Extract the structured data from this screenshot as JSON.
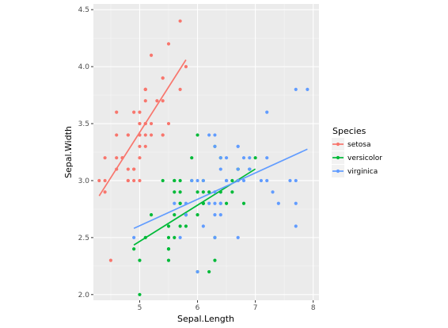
{
  "chart_data": {
    "type": "scatter",
    "xlabel": "Sepal.Length",
    "ylabel": "Sepal.Width",
    "xlim": [
      4.2,
      8.1
    ],
    "ylim": [
      1.95,
      4.55
    ],
    "xticks": [
      5,
      6,
      7,
      8
    ],
    "yticks": [
      2.0,
      2.5,
      3.0,
      3.5,
      4.0,
      4.5
    ],
    "ytick_labels": [
      "2.0",
      "2.5",
      "3.0",
      "3.5",
      "4.0",
      "4.5"
    ],
    "grid": true,
    "legend": {
      "title": "Species",
      "position": "right"
    },
    "series": [
      {
        "name": "setosa",
        "color": "#F8766D",
        "points": [
          [
            5.1,
            3.5
          ],
          [
            4.9,
            3.0
          ],
          [
            4.7,
            3.2
          ],
          [
            4.6,
            3.1
          ],
          [
            5.0,
            3.6
          ],
          [
            5.4,
            3.9
          ],
          [
            4.6,
            3.4
          ],
          [
            5.0,
            3.4
          ],
          [
            4.4,
            2.9
          ],
          [
            4.9,
            3.1
          ],
          [
            5.4,
            3.7
          ],
          [
            4.8,
            3.4
          ],
          [
            4.8,
            3.0
          ],
          [
            4.3,
            3.0
          ],
          [
            5.8,
            4.0
          ],
          [
            5.7,
            4.4
          ],
          [
            5.4,
            3.9
          ],
          [
            5.1,
            3.5
          ],
          [
            5.7,
            3.8
          ],
          [
            5.1,
            3.8
          ],
          [
            5.4,
            3.4
          ],
          [
            5.1,
            3.7
          ],
          [
            4.6,
            3.6
          ],
          [
            5.1,
            3.3
          ],
          [
            4.8,
            3.4
          ],
          [
            5.0,
            3.0
          ],
          [
            5.0,
            3.4
          ],
          [
            5.2,
            3.5
          ],
          [
            5.2,
            3.4
          ],
          [
            4.7,
            3.2
          ],
          [
            4.8,
            3.1
          ],
          [
            5.4,
            3.4
          ],
          [
            5.2,
            4.1
          ],
          [
            5.5,
            4.2
          ],
          [
            4.9,
            3.1
          ],
          [
            5.0,
            3.2
          ],
          [
            5.5,
            3.5
          ],
          [
            4.9,
            3.6
          ],
          [
            4.4,
            3.0
          ],
          [
            5.1,
            3.4
          ],
          [
            5.0,
            3.5
          ],
          [
            4.5,
            2.3
          ],
          [
            4.4,
            3.2
          ],
          [
            5.0,
            3.5
          ],
          [
            5.1,
            3.8
          ],
          [
            4.8,
            3.0
          ],
          [
            5.1,
            3.8
          ],
          [
            4.6,
            3.2
          ],
          [
            5.3,
            3.7
          ],
          [
            5.0,
            3.3
          ]
        ],
        "fit": [
          [
            4.3,
            2.866
          ],
          [
            5.8,
            4.06
          ]
        ]
      },
      {
        "name": "versicolor",
        "color": "#00BA38",
        "points": [
          [
            7.0,
            3.2
          ],
          [
            6.4,
            3.2
          ],
          [
            6.9,
            3.1
          ],
          [
            5.5,
            2.3
          ],
          [
            6.5,
            2.8
          ],
          [
            5.7,
            2.8
          ],
          [
            6.3,
            3.3
          ],
          [
            4.9,
            2.4
          ],
          [
            6.6,
            2.9
          ],
          [
            5.2,
            2.7
          ],
          [
            5.0,
            2.0
          ],
          [
            5.9,
            3.0
          ],
          [
            6.0,
            2.2
          ],
          [
            6.1,
            2.9
          ],
          [
            5.6,
            2.9
          ],
          [
            6.7,
            3.1
          ],
          [
            5.6,
            3.0
          ],
          [
            5.8,
            2.7
          ],
          [
            6.2,
            2.2
          ],
          [
            5.6,
            2.5
          ],
          [
            5.9,
            3.2
          ],
          [
            6.1,
            2.8
          ],
          [
            6.3,
            2.5
          ],
          [
            6.1,
            2.8
          ],
          [
            6.4,
            2.9
          ],
          [
            6.6,
            3.0
          ],
          [
            6.8,
            2.8
          ],
          [
            6.7,
            3.0
          ],
          [
            6.0,
            2.9
          ],
          [
            5.7,
            2.6
          ],
          [
            5.5,
            2.4
          ],
          [
            5.5,
            2.4
          ],
          [
            5.8,
            2.7
          ],
          [
            6.0,
            2.7
          ],
          [
            5.4,
            3.0
          ],
          [
            6.0,
            3.4
          ],
          [
            6.7,
            3.1
          ],
          [
            6.3,
            2.3
          ],
          [
            5.6,
            3.0
          ],
          [
            5.5,
            2.5
          ],
          [
            5.5,
            2.6
          ],
          [
            6.1,
            3.0
          ],
          [
            5.8,
            2.6
          ],
          [
            5.0,
            2.3
          ],
          [
            5.6,
            2.7
          ],
          [
            5.7,
            3.0
          ],
          [
            5.7,
            2.9
          ],
          [
            6.2,
            2.9
          ],
          [
            5.1,
            2.5
          ],
          [
            5.7,
            2.8
          ]
        ],
        "fit": [
          [
            4.9,
            2.435
          ],
          [
            7.0,
            3.102
          ]
        ]
      },
      {
        "name": "virginica",
        "color": "#619CFF",
        "points": [
          [
            6.3,
            3.3
          ],
          [
            5.8,
            2.7
          ],
          [
            7.1,
            3.0
          ],
          [
            6.3,
            2.9
          ],
          [
            6.5,
            3.0
          ],
          [
            7.6,
            3.0
          ],
          [
            4.9,
            2.5
          ],
          [
            7.3,
            2.9
          ],
          [
            6.7,
            2.5
          ],
          [
            7.2,
            3.6
          ],
          [
            6.5,
            3.2
          ],
          [
            6.4,
            2.7
          ],
          [
            6.8,
            3.0
          ],
          [
            5.7,
            2.5
          ],
          [
            5.8,
            2.8
          ],
          [
            6.4,
            3.2
          ],
          [
            6.5,
            3.0
          ],
          [
            7.7,
            3.8
          ],
          [
            7.7,
            2.6
          ],
          [
            6.0,
            2.2
          ],
          [
            6.9,
            3.2
          ],
          [
            5.6,
            2.8
          ],
          [
            7.7,
            2.8
          ],
          [
            6.3,
            2.7
          ],
          [
            6.7,
            3.3
          ],
          [
            7.2,
            3.2
          ],
          [
            6.2,
            2.8
          ],
          [
            6.1,
            3.0
          ],
          [
            6.4,
            2.8
          ],
          [
            7.2,
            3.0
          ],
          [
            7.4,
            2.8
          ],
          [
            7.9,
            3.8
          ],
          [
            6.4,
            2.8
          ],
          [
            6.3,
            2.8
          ],
          [
            6.1,
            2.6
          ],
          [
            7.7,
            3.0
          ],
          [
            6.3,
            3.4
          ],
          [
            6.4,
            3.1
          ],
          [
            6.0,
            3.0
          ],
          [
            6.9,
            3.1
          ],
          [
            6.7,
            3.1
          ],
          [
            6.9,
            3.1
          ],
          [
            5.8,
            2.7
          ],
          [
            6.8,
            3.2
          ],
          [
            6.7,
            3.3
          ],
          [
            6.7,
            3.0
          ],
          [
            6.3,
            2.5
          ],
          [
            6.5,
            3.0
          ],
          [
            6.2,
            3.4
          ],
          [
            5.9,
            3.0
          ]
        ],
        "fit": [
          [
            4.9,
            2.581
          ],
          [
            7.9,
            3.276
          ]
        ]
      }
    ]
  }
}
